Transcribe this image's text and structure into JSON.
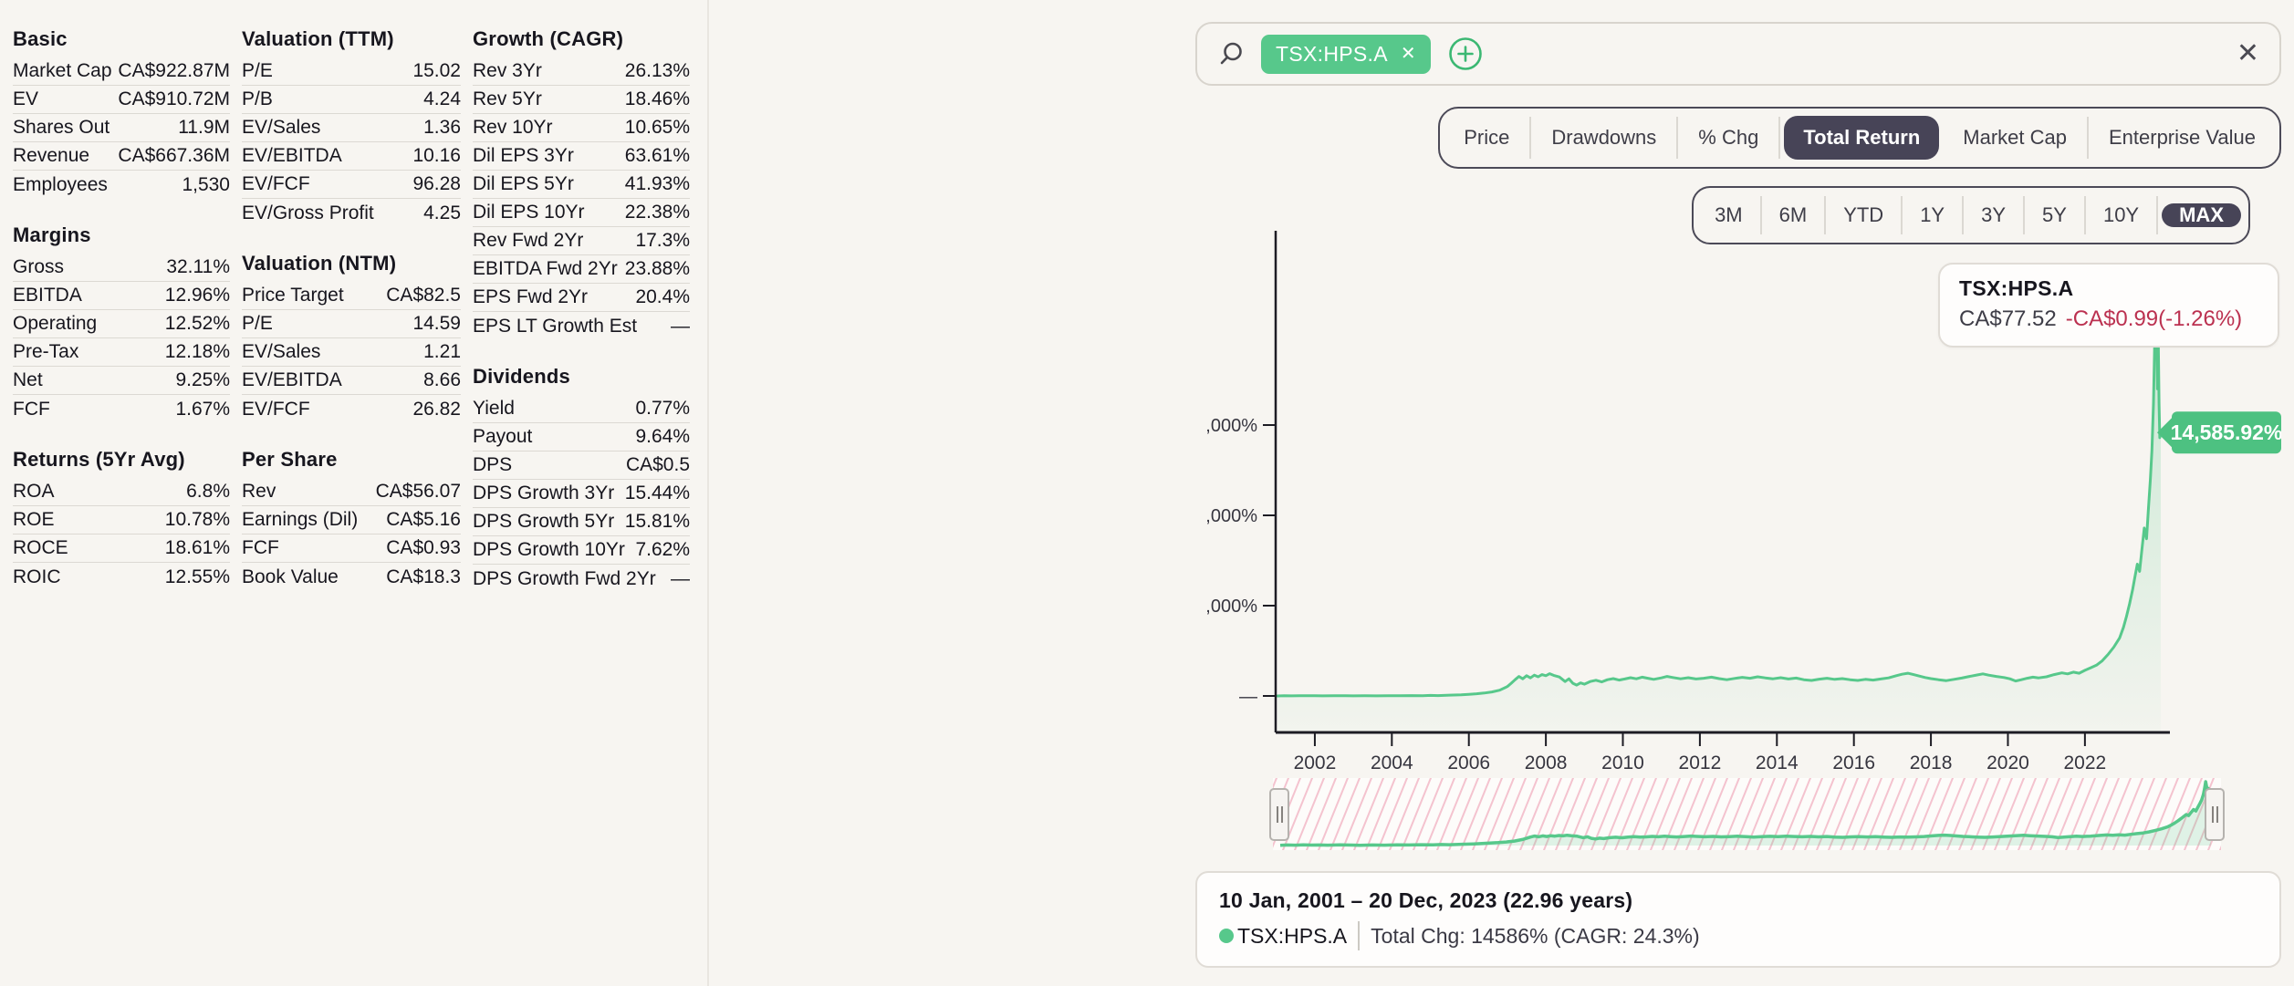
{
  "left": {
    "cols": [
      {
        "sections": [
          {
            "title": "Basic",
            "rows": [
              [
                "Market Cap",
                "CA$922.87M"
              ],
              [
                "EV",
                "CA$910.72M"
              ],
              [
                "Shares Out",
                "11.9M"
              ],
              [
                "Revenue",
                "CA$667.36M"
              ],
              [
                "Employees",
                "1,530"
              ]
            ]
          },
          {
            "title": "Margins",
            "rows": [
              [
                "Gross",
                "32.11%"
              ],
              [
                "EBITDA",
                "12.96%"
              ],
              [
                "Operating",
                "12.52%"
              ],
              [
                "Pre-Tax",
                "12.18%"
              ],
              [
                "Net",
                "9.25%"
              ],
              [
                "FCF",
                "1.67%"
              ]
            ]
          },
          {
            "title": "Returns (5Yr Avg)",
            "rows": [
              [
                "ROA",
                "6.8%"
              ],
              [
                "ROE",
                "10.78%"
              ],
              [
                "ROCE",
                "18.61%"
              ],
              [
                "ROIC",
                "12.55%"
              ]
            ]
          }
        ]
      },
      {
        "sections": [
          {
            "title": "Valuation (TTM)",
            "rows": [
              [
                "P/E",
                "15.02"
              ],
              [
                "P/B",
                "4.24"
              ],
              [
                "EV/Sales",
                "1.36"
              ],
              [
                "EV/EBITDA",
                "10.16"
              ],
              [
                "EV/FCF",
                "96.28"
              ],
              [
                "EV/Gross Profit",
                "4.25"
              ]
            ]
          },
          {
            "title": "Valuation (NTM)",
            "rows": [
              [
                "Price Target",
                "CA$82.5"
              ],
              [
                "P/E",
                "14.59"
              ],
              [
                "EV/Sales",
                "1.21"
              ],
              [
                "EV/EBITDA",
                "8.66"
              ],
              [
                "EV/FCF",
                "26.82"
              ]
            ]
          },
          {
            "title": "Per Share",
            "rows": [
              [
                "Rev",
                "CA$56.07"
              ],
              [
                "Earnings (Dil)",
                "CA$5.16"
              ],
              [
                "FCF",
                "CA$0.93"
              ],
              [
                "Book Value",
                "CA$18.3"
              ]
            ]
          }
        ]
      },
      {
        "sections": [
          {
            "title": "Growth (CAGR)",
            "rows": [
              [
                "Rev 3Yr",
                "26.13%"
              ],
              [
                "Rev 5Yr",
                "18.46%"
              ],
              [
                "Rev 10Yr",
                "10.65%"
              ],
              [
                "Dil EPS 3Yr",
                "63.61%"
              ],
              [
                "Dil EPS 5Yr",
                "41.93%"
              ],
              [
                "Dil EPS 10Yr",
                "22.38%"
              ],
              [
                "Rev Fwd 2Yr",
                "17.3%"
              ],
              [
                "EBITDA Fwd 2Yr",
                "23.88%"
              ],
              [
                "EPS Fwd 2Yr",
                "20.4%"
              ],
              [
                "EPS LT Growth Est",
                "—"
              ]
            ]
          },
          {
            "title": "Dividends",
            "rows": [
              [
                "Yield",
                "0.77%"
              ],
              [
                "Payout",
                "9.64%"
              ],
              [
                "DPS",
                "CA$0.5"
              ],
              [
                "DPS Growth 3Yr",
                "15.44%"
              ],
              [
                "DPS Growth 5Yr",
                "15.81%"
              ],
              [
                "DPS Growth 10Yr",
                "7.62%"
              ],
              [
                "DPS Growth Fwd 2Yr",
                "—"
              ]
            ]
          }
        ]
      }
    ]
  },
  "search": {
    "tag": "TSX:HPS.A",
    "tag_remove": "✕",
    "clear": "✕",
    "value": "",
    "placeholder": ""
  },
  "view_tabs": {
    "items": [
      "Price",
      "Drawdowns",
      "% Chg",
      "Total Return",
      "Market Cap",
      "Enterprise Value"
    ],
    "active": "Total Return"
  },
  "range_tabs": {
    "items": [
      "3M",
      "6M",
      "YTD",
      "1Y",
      "3Y",
      "5Y",
      "10Y",
      "MAX"
    ],
    "active": "MAX"
  },
  "quote_card": {
    "symbol": "TSX:HPS.A",
    "price": "CA$77.52",
    "change": "-CA$0.99(-1.26%)"
  },
  "footer": {
    "period": "10 Jan, 2001 – 20 Dec, 2023 (22.96 years)",
    "symbol": "TSX:HPS.A",
    "summary": "Total Chg: 14586% (CAGR: 24.3%)"
  },
  "colors": {
    "accent_green": "#57c88b",
    "badge_green": "#4dc181",
    "dark_pill": "#474457",
    "negative_red": "#bb3150",
    "page_bg": "#f7f5f1",
    "hatch_pink": "#f4c3cf"
  },
  "chart_data": {
    "type": "area",
    "title": "",
    "xlabel": "",
    "ylabel": "",
    "x_unit": "year",
    "y_unit": "%",
    "xlim": [
      2001.03,
      2023.97
    ],
    "ylim": [
      0,
      26000
    ],
    "x_ticks": [
      2002,
      2004,
      2006,
      2008,
      2010,
      2012,
      2014,
      2016,
      2018,
      2020,
      2022
    ],
    "y_ticks": [
      {
        "value": 15000,
        "label": ",000%"
      },
      {
        "value": 10000,
        "label": ",000%"
      },
      {
        "value": 5000,
        "label": ",000%"
      },
      {
        "value": 0,
        "label": "—"
      }
    ],
    "end_label": "14,585.92%",
    "end_value": 14585.92,
    "series": [
      {
        "name": "TSX:HPS.A",
        "points": [
          [
            2001.03,
            2
          ],
          [
            2001.2,
            12
          ],
          [
            2001.4,
            6
          ],
          [
            2001.6,
            14
          ],
          [
            2001.8,
            8
          ],
          [
            2002.0,
            12
          ],
          [
            2002.2,
            5
          ],
          [
            2002.5,
            14
          ],
          [
            2002.8,
            8
          ],
          [
            2003.0,
            3
          ],
          [
            2003.3,
            10
          ],
          [
            2003.6,
            6
          ],
          [
            2003.9,
            14
          ],
          [
            2004.2,
            10
          ],
          [
            2004.5,
            20
          ],
          [
            2004.8,
            15
          ],
          [
            2005.0,
            28
          ],
          [
            2005.2,
            22
          ],
          [
            2005.5,
            45
          ],
          [
            2005.8,
            65
          ],
          [
            2006.0,
            90
          ],
          [
            2006.2,
            120
          ],
          [
            2006.4,
            160
          ],
          [
            2006.6,
            220
          ],
          [
            2006.8,
            320
          ],
          [
            2007.0,
            520
          ],
          [
            2007.1,
            700
          ],
          [
            2007.2,
            900
          ],
          [
            2007.3,
            1080
          ],
          [
            2007.4,
            950
          ],
          [
            2007.5,
            1120
          ],
          [
            2007.6,
            1000
          ],
          [
            2007.7,
            1150
          ],
          [
            2007.8,
            1060
          ],
          [
            2007.9,
            1180
          ],
          [
            2008.0,
            1120
          ],
          [
            2008.1,
            1230
          ],
          [
            2008.2,
            1140
          ],
          [
            2008.35,
            1050
          ],
          [
            2008.5,
            800
          ],
          [
            2008.6,
            950
          ],
          [
            2008.7,
            700
          ],
          [
            2008.8,
            600
          ],
          [
            2008.9,
            720
          ],
          [
            2009.0,
            650
          ],
          [
            2009.15,
            800
          ],
          [
            2009.3,
            870
          ],
          [
            2009.45,
            780
          ],
          [
            2009.6,
            900
          ],
          [
            2009.75,
            960
          ],
          [
            2009.9,
            880
          ],
          [
            2010.05,
            940
          ],
          [
            2010.2,
            1010
          ],
          [
            2010.35,
            950
          ],
          [
            2010.5,
            1040
          ],
          [
            2010.65,
            980
          ],
          [
            2010.8,
            920
          ],
          [
            2011.0,
            1000
          ],
          [
            2011.15,
            1080
          ],
          [
            2011.3,
            1020
          ],
          [
            2011.5,
            950
          ],
          [
            2011.7,
            1010
          ],
          [
            2011.9,
            940
          ],
          [
            2012.1,
            980
          ],
          [
            2012.3,
            1040
          ],
          [
            2012.5,
            960
          ],
          [
            2012.7,
            900
          ],
          [
            2012.9,
            970
          ],
          [
            2013.1,
            1030
          ],
          [
            2013.3,
            980
          ],
          [
            2013.5,
            1060
          ],
          [
            2013.7,
            1000
          ],
          [
            2013.9,
            950
          ],
          [
            2014.1,
            1010
          ],
          [
            2014.3,
            940
          ],
          [
            2014.5,
            990
          ],
          [
            2014.7,
            900
          ],
          [
            2014.9,
            860
          ],
          [
            2015.1,
            930
          ],
          [
            2015.3,
            980
          ],
          [
            2015.5,
            920
          ],
          [
            2015.7,
            960
          ],
          [
            2015.9,
            900
          ],
          [
            2016.1,
            860
          ],
          [
            2016.3,
            920
          ],
          [
            2016.5,
            880
          ],
          [
            2016.7,
            940
          ],
          [
            2016.9,
            1000
          ],
          [
            2017.1,
            1120
          ],
          [
            2017.25,
            1200
          ],
          [
            2017.4,
            1260
          ],
          [
            2017.55,
            1180
          ],
          [
            2017.7,
            1100
          ],
          [
            2017.85,
            1020
          ],
          [
            2018.0,
            960
          ],
          [
            2018.2,
            900
          ],
          [
            2018.4,
            850
          ],
          [
            2018.6,
            920
          ],
          [
            2018.8,
            990
          ],
          [
            2019.0,
            1080
          ],
          [
            2019.2,
            1160
          ],
          [
            2019.35,
            1220
          ],
          [
            2019.5,
            1150
          ],
          [
            2019.7,
            1080
          ],
          [
            2019.9,
            1020
          ],
          [
            2020.05,
            950
          ],
          [
            2020.2,
            830
          ],
          [
            2020.35,
            900
          ],
          [
            2020.5,
            980
          ],
          [
            2020.65,
            1040
          ],
          [
            2020.8,
            1000
          ],
          [
            2021.0,
            1060
          ],
          [
            2021.2,
            1180
          ],
          [
            2021.4,
            1280
          ],
          [
            2021.55,
            1220
          ],
          [
            2021.7,
            1320
          ],
          [
            2021.85,
            1260
          ],
          [
            2022.0,
            1420
          ],
          [
            2022.15,
            1560
          ],
          [
            2022.3,
            1700
          ],
          [
            2022.45,
            1950
          ],
          [
            2022.6,
            2300
          ],
          [
            2022.75,
            2700
          ],
          [
            2022.9,
            3200
          ],
          [
            2023.0,
            3800
          ],
          [
            2023.08,
            4400
          ],
          [
            2023.16,
            5100
          ],
          [
            2023.24,
            5900
          ],
          [
            2023.3,
            6600
          ],
          [
            2023.36,
            7300
          ],
          [
            2023.42,
            6900
          ],
          [
            2023.48,
            8100
          ],
          [
            2023.54,
            9300
          ],
          [
            2023.6,
            8700
          ],
          [
            2023.65,
            10400
          ],
          [
            2023.7,
            12000
          ],
          [
            2023.74,
            13600
          ],
          [
            2023.78,
            16200
          ],
          [
            2023.81,
            19200
          ],
          [
            2023.84,
            23400
          ],
          [
            2023.865,
            20300
          ],
          [
            2023.885,
            17000
          ],
          [
            2023.905,
            19600
          ],
          [
            2023.925,
            16200
          ],
          [
            2023.945,
            14300
          ],
          [
            2023.97,
            14585.92
          ]
        ]
      }
    ],
    "legend_position": "bottom",
    "grid": false
  }
}
